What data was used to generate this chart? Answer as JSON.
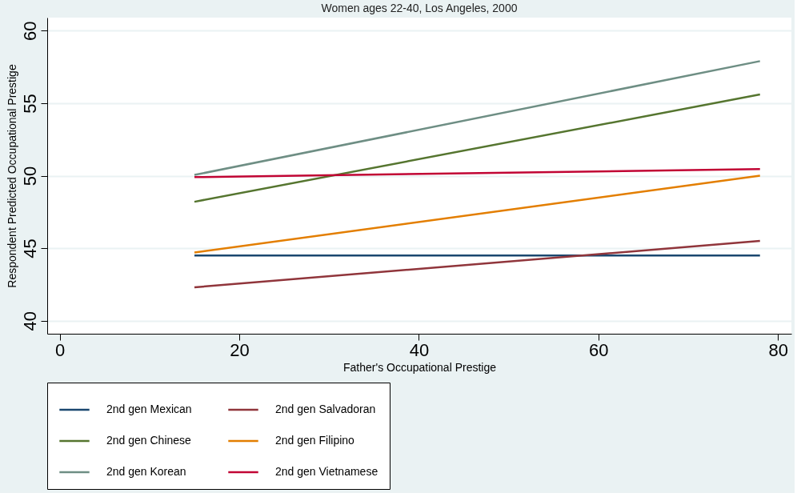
{
  "chart_data": {
    "type": "line",
    "title": "Women ages 22-40, Los Angeles, 2000",
    "xlabel": "Father's Occupational Prestige",
    "ylabel": "Respondent Predicted Occupational Prestige",
    "x": [
      15,
      78
    ],
    "series": [
      {
        "name": "2nd gen Mexican",
        "color": "#1a476f",
        "values": [
          44.5,
          44.5
        ]
      },
      {
        "name": "2nd gen Salvadoran",
        "color": "#90353b",
        "values": [
          42.3,
          45.5
        ]
      },
      {
        "name": "2nd gen Chinese",
        "color": "#55752f",
        "values": [
          48.2,
          55.6
        ]
      },
      {
        "name": "2nd gen Filipino",
        "color": "#e37e00",
        "values": [
          44.7,
          50.0
        ]
      },
      {
        "name": "2nd gen Korean",
        "color": "#6e8e84",
        "values": [
          50.05,
          57.9
        ]
      },
      {
        "name": "2nd gen Vietnamese",
        "color": "#c10534",
        "values": [
          49.9,
          50.45
        ]
      }
    ],
    "xlim": [
      -1.4,
      81.5
    ],
    "ylim": [
      39.1,
      60.9
    ],
    "xticks": [
      0,
      20,
      40,
      60,
      80
    ],
    "yticks": [
      40,
      45,
      50,
      55,
      60
    ],
    "grid": "y",
    "legend": "bottom",
    "line_style": "solid",
    "marker": "none"
  }
}
